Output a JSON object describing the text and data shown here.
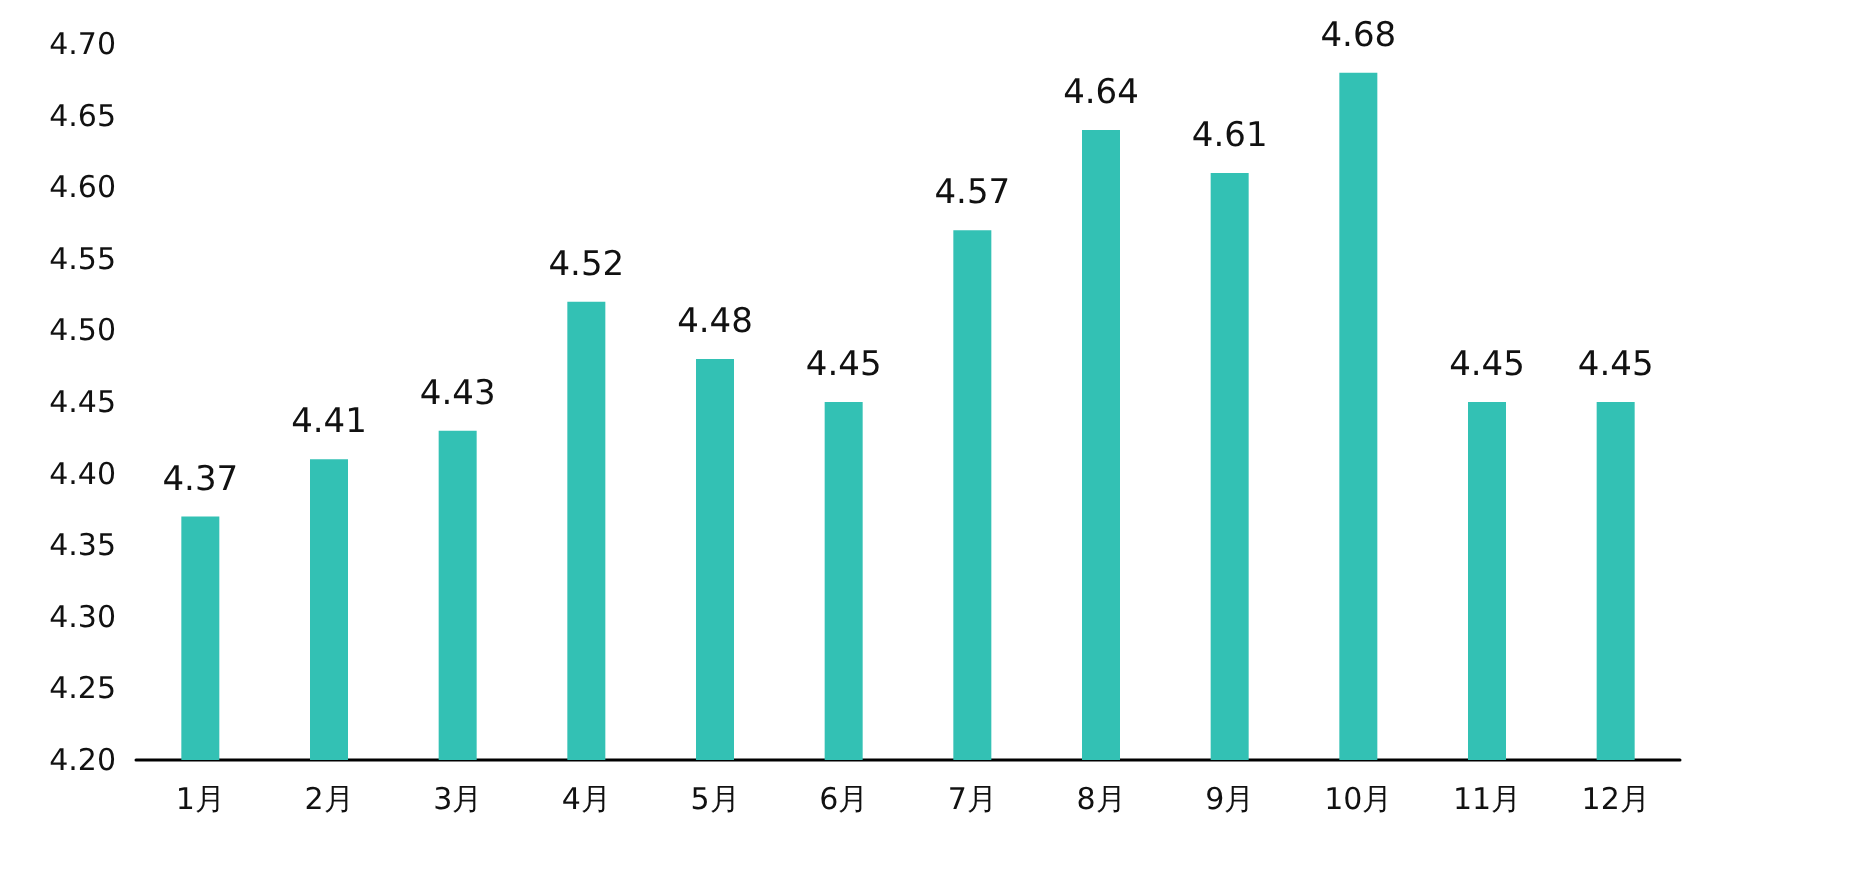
{
  "chart_data": {
    "type": "bar",
    "categories": [
      "1月",
      "2月",
      "3月",
      "4月",
      "5月",
      "6月",
      "7月",
      "8月",
      "9月",
      "10月",
      "11月",
      "12月"
    ],
    "values": [
      4.37,
      4.41,
      4.43,
      4.52,
      4.48,
      4.45,
      4.57,
      4.64,
      4.61,
      4.68,
      4.45,
      4.45
    ],
    "color": "#33c1b4",
    "ylim": [
      4.2,
      4.7
    ],
    "yticks": [
      {
        "value": 4.2,
        "label": "4.20"
      },
      {
        "value": 4.25,
        "label": "4.25"
      },
      {
        "value": 4.3,
        "label": "4.30"
      },
      {
        "value": 4.35,
        "label": "4.35"
      },
      {
        "value": 4.4,
        "label": "4.40"
      },
      {
        "value": 4.45,
        "label": "4.45"
      },
      {
        "value": 4.5,
        "label": "4.50"
      },
      {
        "value": 4.55,
        "label": "4.55"
      },
      {
        "value": 4.6,
        "label": "4.60"
      },
      {
        "value": 4.65,
        "label": "4.65"
      },
      {
        "value": 4.7,
        "label": "4.70"
      }
    ],
    "data_labels": true
  }
}
